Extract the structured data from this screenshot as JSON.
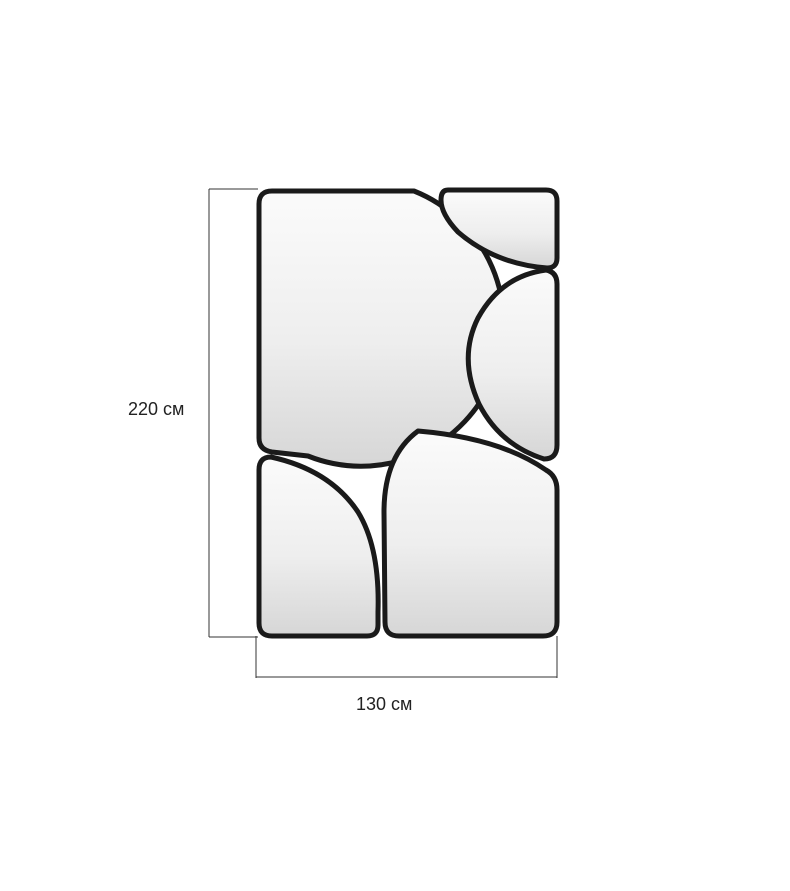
{
  "dimensions": {
    "height_label": "220 см",
    "width_label": "130 см"
  },
  "colors": {
    "frame": "#1a1a1a",
    "glass_top": "#fbfbfb",
    "glass_bottom": "#d6d6d6",
    "dimension_line": "#333333"
  }
}
